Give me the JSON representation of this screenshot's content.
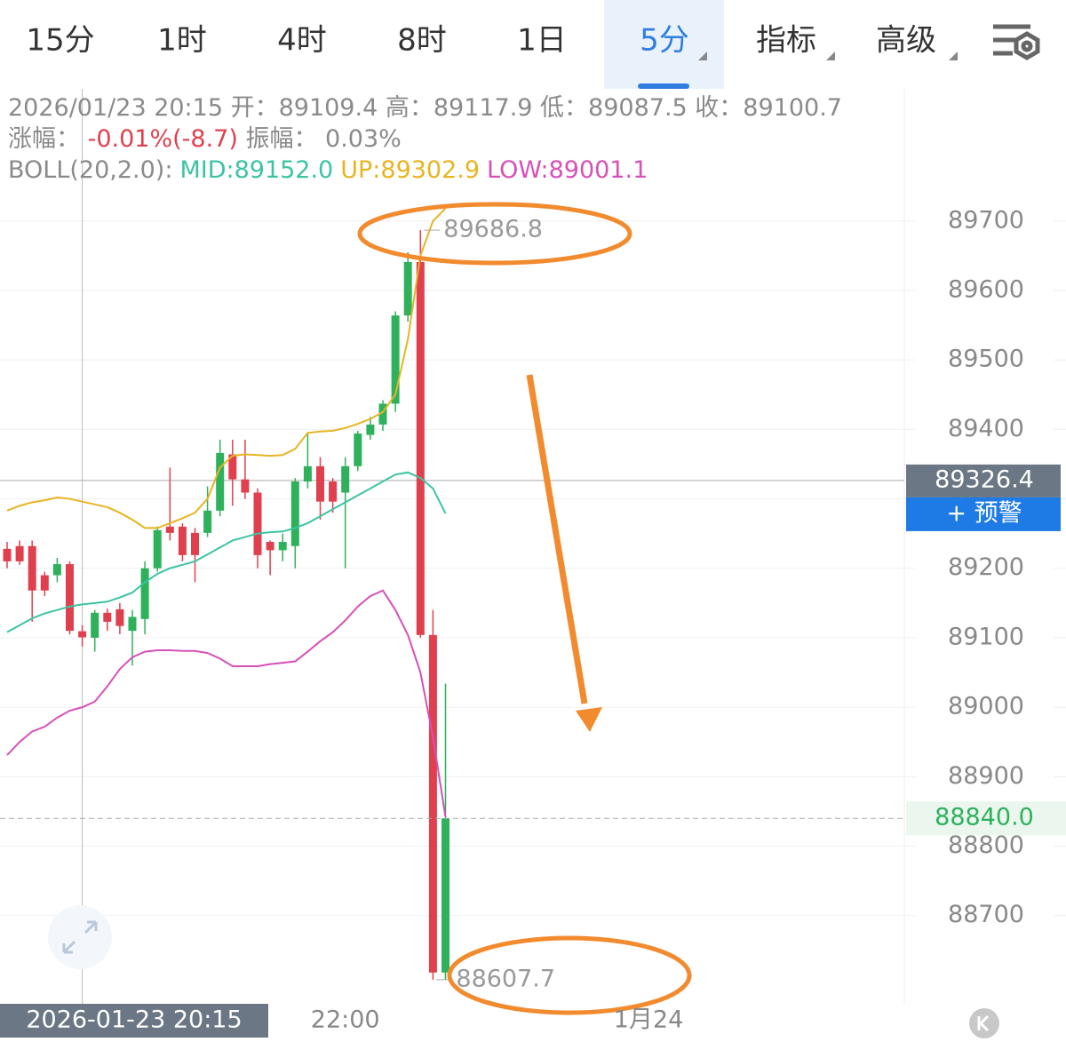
{
  "tabs": [
    "15分",
    "1时",
    "4时",
    "8时",
    "1日",
    "5分",
    "指标",
    "高级"
  ],
  "selected_tab": 5,
  "info": {
    "line1": "2026/01/23 20:15 开：89109.4 高：89117.9 低：89087.5 收：89100.7",
    "change_label": "涨幅：",
    "change_value": "-0.01%(-8.7)",
    "amplitude_label": "振幅：",
    "amplitude_value": "0.03%",
    "boll_label": "BOLL(20,2.0):"
  },
  "chart_data": {
    "type": "candlestick",
    "categories": [
      null,
      null,
      null,
      null,
      null,
      null,
      "2026-01-23 20:15",
      null,
      null,
      null,
      null,
      null,
      null,
      null,
      null,
      null,
      null,
      null,
      null,
      null,
      null,
      null,
      null,
      null,
      null,
      null,
      null,
      "22:00",
      null,
      null,
      null,
      null,
      null,
      null,
      null,
      null
    ],
    "next_day_label": "1月24",
    "up_color": "#2fb15c",
    "down_color": "#e0404e",
    "open": [
      89228,
      89232,
      89232,
      89190,
      89190,
      89206,
      89109.4,
      89100,
      89136,
      89141,
      89110,
      89127,
      89200,
      89260,
      89260,
      89251,
      89251,
      89283,
      89364,
      89328,
      89309,
      89238,
      89226,
      89232,
      89325,
      89347,
      89325,
      89309,
      89347,
      89392,
      89407,
      89437,
      89564,
      89641,
      89104,
      88618
    ],
    "close": [
      89210,
      89210,
      89168,
      89168,
      89206,
      89110,
      89100.7,
      89136,
      89123,
      89117,
      89130,
      89200,
      89255,
      89251,
      89219,
      89219,
      89283,
      89366,
      89328,
      89309,
      89219,
      89226,
      89238,
      89325,
      89347,
      89296,
      89296,
      89347,
      89394,
      89407,
      89437,
      89564,
      89641,
      89104,
      88618,
      88840
    ],
    "high": [
      89238,
      89240,
      89240,
      89195,
      89215,
      89210,
      89117.9,
      89140,
      89142,
      89150,
      89140,
      89210,
      89260,
      89345,
      89265,
      89258,
      89318,
      89385,
      89385,
      89385,
      89315,
      89240,
      89250,
      89330,
      89395,
      89360,
      89330,
      89360,
      89398,
      89418,
      89442,
      89570,
      89655,
      89686.8,
      89140,
      89034
    ],
    "low": [
      89200,
      89205,
      89123,
      89160,
      89180,
      89105,
      89087.5,
      89080,
      89110,
      89105,
      89060,
      89105,
      89195,
      89240,
      89210,
      89180,
      89245,
      89275,
      89290,
      89300,
      89200,
      89190,
      89210,
      89200,
      89315,
      89270,
      89280,
      89200,
      89340,
      89385,
      89398,
      89425,
      89555,
      89100,
      88607.7,
      88608
    ],
    "series": [
      {
        "name": "MID:89152.0",
        "color": "#3cc3a3",
        "values": [
          89108,
          89118,
          89128,
          89135,
          89140,
          89145,
          89148,
          89150,
          89152,
          89158,
          89165,
          89180,
          89192,
          89200,
          89205,
          89210,
          89220,
          89230,
          89240,
          89245,
          89250,
          89252,
          89253,
          89258,
          89265,
          89275,
          89285,
          89295,
          89305,
          89315,
          89325,
          89335,
          89338,
          89330,
          89315,
          89279
        ]
      },
      {
        "name": "UP:89302.9",
        "color": "#e8b422",
        "values": [
          89283,
          89290,
          89295,
          89298,
          89302,
          89300,
          89296,
          89292,
          89288,
          89280,
          89270,
          89258,
          89258,
          89265,
          89272,
          89280,
          89300,
          89345,
          89362,
          89364,
          89363,
          89362,
          89363,
          89372,
          89395,
          89397,
          89398,
          89402,
          89408,
          89415,
          89425,
          89450,
          89530,
          89650,
          89700,
          89718
        ]
      },
      {
        "name": "LOW:89001.1",
        "color": "#d650b8",
        "values": [
          88931,
          88950,
          88965,
          88972,
          88985,
          88995,
          89000,
          89008,
          89030,
          89055,
          89072,
          89080,
          89082,
          89082,
          89081,
          89081,
          89078,
          89070,
          89059,
          89059,
          89059,
          89062,
          89064,
          89066,
          89080,
          89095,
          89108,
          89125,
          89145,
          89160,
          89168,
          89140,
          89104,
          89050,
          88957,
          88842
        ]
      }
    ],
    "ylim": [
      88573,
      89756
    ],
    "yticks": [
      88700,
      88800,
      88900,
      89000,
      89100,
      89200,
      89300,
      89400,
      89500,
      89600,
      89700
    ],
    "grid": true,
    "max_marker": 89686.8,
    "min_marker": 88607.7,
    "crosshair_price": 89326.4,
    "alert_button": "+ 预警",
    "last_price": {
      "value": 88840,
      "label": "88840.0"
    }
  }
}
